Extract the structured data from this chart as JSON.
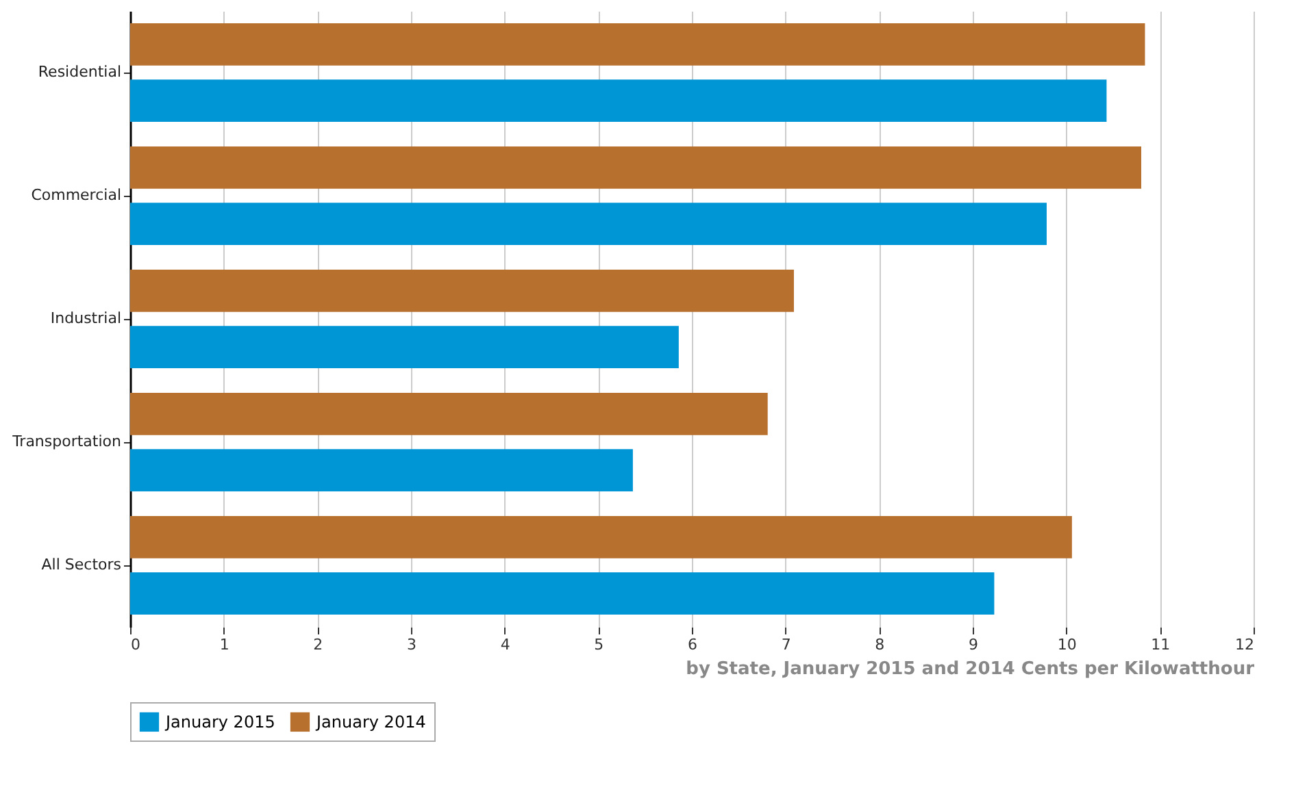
{
  "chart_data": {
    "type": "bar",
    "orientation": "horizontal",
    "categories": [
      "Residential",
      "Commercial",
      "Industrial",
      "Transportation",
      "All Sectors"
    ],
    "series": [
      {
        "name": "January 2015",
        "color": "#0096d6",
        "values": [
          10.43,
          9.79,
          5.86,
          5.37,
          9.23
        ]
      },
      {
        "name": "January 2014",
        "color": "#b8702f",
        "values": [
          10.84,
          10.8,
          7.09,
          6.81,
          10.06
        ]
      }
    ],
    "xlim": [
      0,
      12
    ],
    "xticks": [
      0,
      1,
      2,
      3,
      4,
      5,
      6,
      7,
      8,
      9,
      10,
      11,
      12
    ],
    "xlabel": "by State, January 2015 and 2014 Cents per Kilowatthour",
    "grid": "x",
    "legend": "bottom"
  }
}
